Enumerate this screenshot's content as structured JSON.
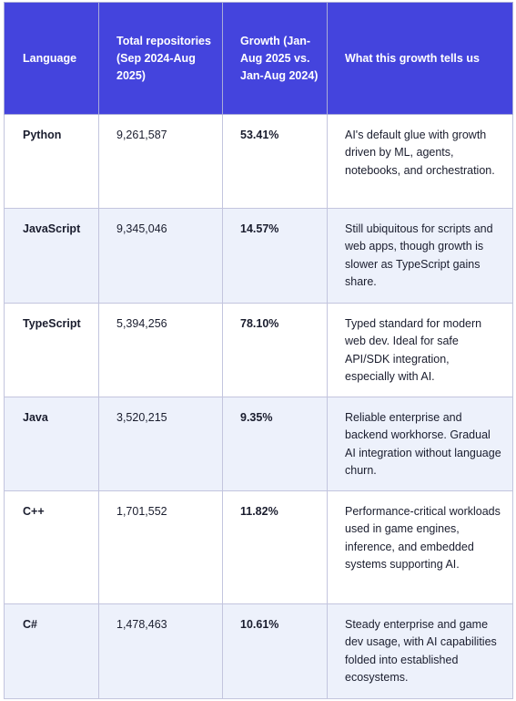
{
  "table": {
    "headers": {
      "language": "Language",
      "total_repositories": "Total repositories (Sep 2024-Aug 2025)",
      "growth": "Growth (Jan-Aug 2025 vs. Jan-Aug 2024)",
      "meaning": "What this growth tells us"
    },
    "rows": [
      {
        "language": "Python",
        "total": "9,261,587",
        "growth": "53.41%",
        "meaning": "AI's default glue with growth driven by ML, agents, notebooks, and orchestration."
      },
      {
        "language": "JavaScript",
        "total": "9,345,046",
        "growth": "14.57%",
        "meaning": "Still ubiquitous for scripts and web apps, though growth is slower as TypeScript gains share."
      },
      {
        "language": "TypeScript",
        "total": "5,394,256",
        "growth": "78.10%",
        "meaning": "Typed standard for modern web dev. Ideal for safe API/SDK integration, especially with AI."
      },
      {
        "language": "Java",
        "total": "3,520,215",
        "growth": "9.35%",
        "meaning": "Reliable enterprise and backend workhorse. Gradual AI integration without language churn."
      },
      {
        "language": "C++",
        "total": "1,701,552",
        "growth": "11.82%",
        "meaning": "Performance-critical workloads used in game engines, inference, and embedded systems supporting AI."
      },
      {
        "language": "C#",
        "total": "1,478,463",
        "growth": "10.61%",
        "meaning": "Steady enterprise and game dev usage, with AI capabilities folded into established ecosystems."
      }
    ]
  },
  "colors": {
    "header_background": "#4444dd",
    "header_text": "#ffffff",
    "row_alt_background": "#edf1fb",
    "border": "#c3c5de"
  }
}
